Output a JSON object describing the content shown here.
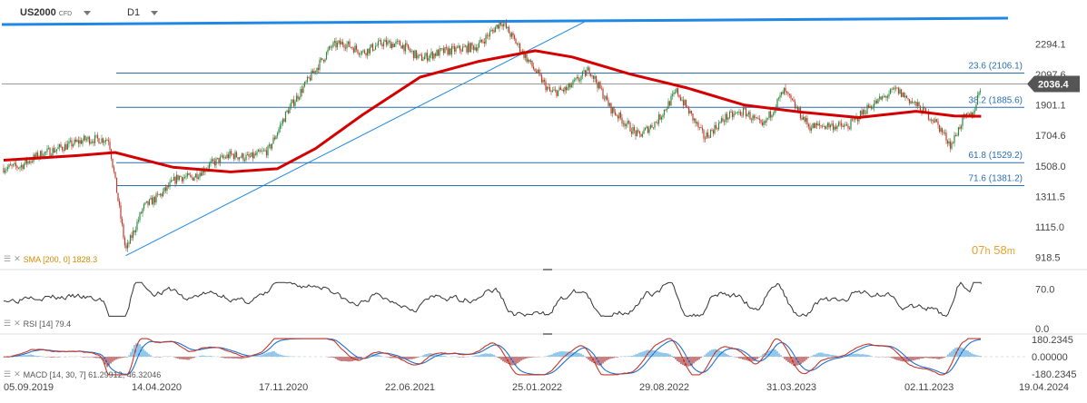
{
  "header": {
    "symbol": "US2000",
    "instrument_type": "CFD",
    "timeframe": "D1"
  },
  "countdown": {
    "hours": "07",
    "hours_unit": "h",
    "minutes": "58",
    "minutes_unit": "m"
  },
  "colors": {
    "price_up": "#2b8a3e",
    "price_down": "#c0392b",
    "sma": "#d40000",
    "trendline": "#1f88e5",
    "fib": "#2a6fb0",
    "rsi": "#333333",
    "macd": "#c0392b",
    "signal": "#1f6fd1",
    "label_bg": "#555555",
    "timer": "#e8a030"
  },
  "indicators": {
    "sma_label": "SMA [200,  0]  1828.3",
    "rsi_label": "RSI [14]  79.4",
    "macd_label": "MACD [14, 30, 7]  61.29912,   46.32046"
  },
  "chart_data": [
    {
      "type": "candlestick",
      "title": "US2000",
      "x_ticks": [
        "05.09.2019",
        "14.04.2020",
        "17.11.2020",
        "22.06.2021",
        "25.01.2022",
        "29.08.2022",
        "31.03.2023",
        "02.11.2023",
        "19.04.2024"
      ],
      "y_ticks": [
        918.5,
        1115.0,
        1311.5,
        1508.0,
        1704.6,
        1901.1,
        2097.6,
        2294.1
      ],
      "ylim": [
        870,
        2460
      ],
      "last_price": 2036.4,
      "fibonacci": [
        {
          "label": "23.6 (2106.1)",
          "level": 2106.1
        },
        {
          "label": "38.2 (1885.6)",
          "level": 1885.6
        },
        {
          "label": "61.8 (1529.2)",
          "level": 1529.2
        },
        {
          "label": "71.6 (1381.2)",
          "level": 1381.2
        }
      ],
      "resistance_level": 2435,
      "trendline": {
        "from": [
          "2020-03-18",
          930
        ],
        "to": [
          "2022-03-20",
          2435
        ]
      },
      "close_path": [
        [
          "2019-09-05",
          1495
        ],
        [
          "2019-10-01",
          1505
        ],
        [
          "2019-11-01",
          1580
        ],
        [
          "2019-12-01",
          1620
        ],
        [
          "2020-01-15",
          1680
        ],
        [
          "2020-02-20",
          1680
        ],
        [
          "2020-03-18",
          960
        ],
        [
          "2020-04-15",
          1240
        ],
        [
          "2020-05-15",
          1330
        ],
        [
          "2020-06-10",
          1440
        ],
        [
          "2020-07-01",
          1430
        ],
        [
          "2020-08-01",
          1520
        ],
        [
          "2020-09-01",
          1580
        ],
        [
          "2020-10-01",
          1560
        ],
        [
          "2020-11-01",
          1610
        ],
        [
          "2020-12-01",
          1860
        ],
        [
          "2021-01-15",
          2130
        ],
        [
          "2021-02-10",
          2280
        ],
        [
          "2021-03-01",
          2300
        ],
        [
          "2021-04-01",
          2240
        ],
        [
          "2021-05-01",
          2300
        ],
        [
          "2021-06-01",
          2290
        ],
        [
          "2021-07-01",
          2200
        ],
        [
          "2021-08-01",
          2240
        ],
        [
          "2021-09-01",
          2260
        ],
        [
          "2021-10-01",
          2280
        ],
        [
          "2021-11-08",
          2440
        ],
        [
          "2021-12-15",
          2220
        ],
        [
          "2022-01-25",
          1980
        ],
        [
          "2022-02-20",
          2000
        ],
        [
          "2022-03-29",
          2130
        ],
        [
          "2022-05-01",
          1880
        ],
        [
          "2022-06-15",
          1700
        ],
        [
          "2022-07-15",
          1800
        ],
        [
          "2022-08-15",
          1990
        ],
        [
          "2022-09-28",
          1690
        ],
        [
          "2022-11-01",
          1820
        ],
        [
          "2022-12-01",
          1860
        ],
        [
          "2022-12-30",
          1760
        ],
        [
          "2023-02-02",
          1990
        ],
        [
          "2023-03-15",
          1760
        ],
        [
          "2023-04-15",
          1770
        ],
        [
          "2023-05-15",
          1760
        ],
        [
          "2023-06-15",
          1880
        ],
        [
          "2023-07-31",
          2000
        ],
        [
          "2023-09-01",
          1900
        ],
        [
          "2023-10-01",
          1800
        ],
        [
          "2023-10-27",
          1640
        ],
        [
          "2023-11-15",
          1810
        ],
        [
          "2023-12-01",
          1840
        ],
        [
          "2023-12-14",
          2036
        ]
      ],
      "sma_path": [
        [
          "2019-09-05",
          1545
        ],
        [
          "2020-01-01",
          1575
        ],
        [
          "2020-03-01",
          1595
        ],
        [
          "2020-06-01",
          1500
        ],
        [
          "2020-09-01",
          1470
        ],
        [
          "2020-11-15",
          1490
        ],
        [
          "2021-01-15",
          1620
        ],
        [
          "2021-04-01",
          1840
        ],
        [
          "2021-07-01",
          2080
        ],
        [
          "2021-10-01",
          2180
        ],
        [
          "2022-01-01",
          2250
        ],
        [
          "2022-03-01",
          2210
        ],
        [
          "2022-06-01",
          2100
        ],
        [
          "2022-09-01",
          2010
        ],
        [
          "2022-12-01",
          1900
        ],
        [
          "2023-03-01",
          1855
        ],
        [
          "2023-06-01",
          1820
        ],
        [
          "2023-09-01",
          1860
        ],
        [
          "2023-11-01",
          1830
        ],
        [
          "2023-12-14",
          1828
        ]
      ],
      "sma_value": 1828.3
    },
    {
      "type": "line",
      "title": "RSI [14]",
      "y_ticks": [
        0.0,
        70.0
      ],
      "ylim": [
        0,
        100
      ],
      "last_value": 79.4
    },
    {
      "type": "line",
      "title": "MACD [14, 30, 7]",
      "y_ticks": [
        -180.2345,
        0.0,
        180.2345
      ],
      "ylim": [
        -200,
        200
      ],
      "series": [
        {
          "name": "MACD",
          "last_value": 61.29912
        },
        {
          "name": "Signal",
          "last_value": 46.32046
        }
      ]
    }
  ]
}
